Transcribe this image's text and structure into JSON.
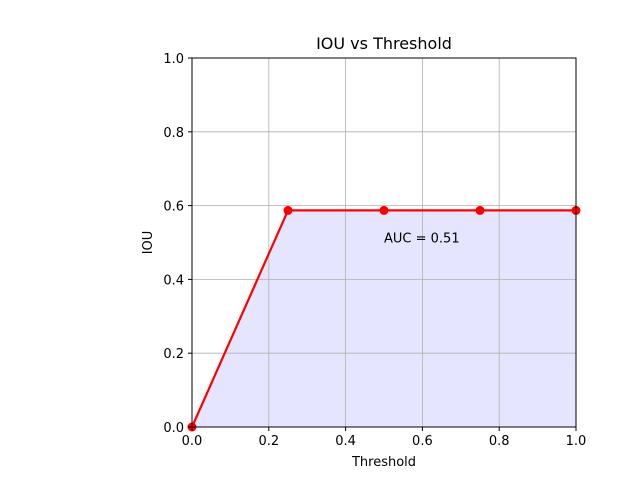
{
  "chart_data": {
    "type": "line",
    "title": "IOU vs Threshold",
    "xlabel": "Threshold",
    "ylabel": "IOU",
    "xlim": [
      0.0,
      1.0
    ],
    "ylim": [
      0.0,
      1.0
    ],
    "xticks": [
      0.0,
      0.2,
      0.4,
      0.6,
      0.8,
      1.0
    ],
    "yticks": [
      0.0,
      0.2,
      0.4,
      0.6,
      0.8,
      1.0
    ],
    "xtick_labels": [
      "0.0",
      "0.2",
      "0.4",
      "0.6",
      "0.8",
      "1.0"
    ],
    "ytick_labels": [
      "0.0",
      "0.2",
      "0.4",
      "0.6",
      "0.8",
      "1.0"
    ],
    "grid": true,
    "series": [
      {
        "x": [
          0.0,
          0.25,
          0.5,
          0.75,
          1.0
        ],
        "y": [
          0.0,
          0.587,
          0.587,
          0.587,
          0.587
        ],
        "color": "#ff0000",
        "marker": "circle"
      }
    ],
    "fill_under": {
      "color": "#e5e5ff"
    },
    "annotations": [
      {
        "text": "AUC = 0.51",
        "x": 0.5,
        "y": 0.5
      }
    ]
  }
}
